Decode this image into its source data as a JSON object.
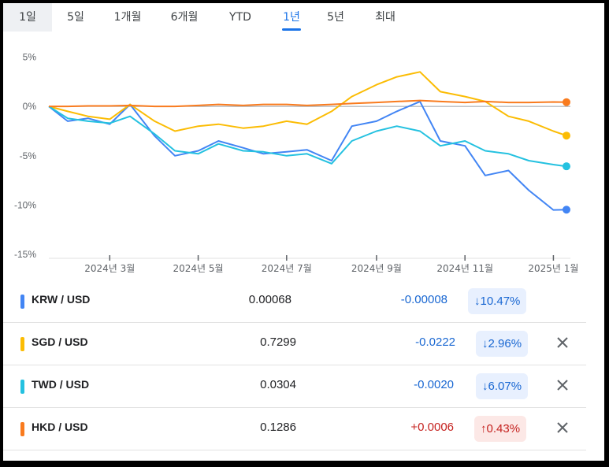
{
  "tabs": [
    {
      "label": "1일"
    },
    {
      "label": "5일"
    },
    {
      "label": "1개월"
    },
    {
      "label": "6개월"
    },
    {
      "label": "YTD"
    },
    {
      "label": "1년"
    },
    {
      "label": "5년"
    },
    {
      "label": "최대"
    }
  ],
  "active_tab": "1년",
  "chart_data": {
    "type": "line",
    "y_unit": "%",
    "ylim": [
      -15,
      6
    ],
    "y_ticks": [
      "5%",
      "0%",
      "-5%",
      "-10%",
      "-15%"
    ],
    "x_ticks": [
      "2024년 3월",
      "2024년 5월",
      "2024년 7월",
      "2024년 9월",
      "2024년 11월",
      "2025년 1월"
    ],
    "x": [
      "2024-01-19",
      "2024-02-01",
      "2024-02-15",
      "2024-03-01",
      "2024-03-15",
      "2024-04-01",
      "2024-04-15",
      "2024-05-01",
      "2024-05-15",
      "2024-06-01",
      "2024-06-15",
      "2024-07-01",
      "2024-07-15",
      "2024-08-01",
      "2024-08-15",
      "2024-09-01",
      "2024-09-15",
      "2024-10-01",
      "2024-10-15",
      "2024-11-01",
      "2024-11-15",
      "2024-12-01",
      "2024-12-15",
      "2025-01-01",
      "2025-01-10"
    ],
    "series": [
      {
        "name": "KRW / USD",
        "color": "#4285f4",
        "values": [
          0,
          -1.5,
          -1.2,
          -1.8,
          0.2,
          -3.0,
          -5.0,
          -4.5,
          -3.5,
          -4.2,
          -4.8,
          -4.6,
          -4.4,
          -5.5,
          -2.0,
          -1.5,
          -0.5,
          0.5,
          -3.5,
          -4.0,
          -7.0,
          -6.5,
          -8.5,
          -10.5,
          -10.47
        ]
      },
      {
        "name": "SGD / USD",
        "color": "#fbbc04",
        "values": [
          0,
          -0.5,
          -1.0,
          -1.3,
          0.2,
          -1.5,
          -2.5,
          -2.0,
          -1.8,
          -2.2,
          -2.0,
          -1.5,
          -1.8,
          -0.5,
          1.0,
          2.2,
          3.0,
          3.5,
          1.5,
          1.0,
          0.5,
          -1.0,
          -1.5,
          -2.5,
          -2.96
        ]
      },
      {
        "name": "TWD / USD",
        "color": "#24c1e0",
        "values": [
          0,
          -1.2,
          -1.5,
          -1.7,
          -1.0,
          -2.8,
          -4.5,
          -4.8,
          -3.8,
          -4.5,
          -4.6,
          -5.0,
          -4.8,
          -5.8,
          -3.5,
          -2.5,
          -2.0,
          -2.5,
          -4.0,
          -3.5,
          -4.5,
          -4.8,
          -5.5,
          -5.9,
          -6.07
        ]
      },
      {
        "name": "HKD / USD",
        "color": "#f97b1e",
        "values": [
          0,
          0,
          0.05,
          0.05,
          0.1,
          0,
          0,
          0.1,
          0.2,
          0.1,
          0.2,
          0.2,
          0.1,
          0.2,
          0.3,
          0.4,
          0.5,
          0.6,
          0.5,
          0.4,
          0.5,
          0.4,
          0.4,
          0.45,
          0.43
        ]
      }
    ]
  },
  "rows": [
    {
      "pair": "KRW / USD",
      "color": "#4285f4",
      "rate": "0.00068",
      "change": "-0.00008",
      "pct": "↓10.47%",
      "dir": "neg",
      "removable": false
    },
    {
      "pair": "SGD / USD",
      "color": "#fbbc04",
      "rate": "0.7299",
      "change": "-0.0222",
      "pct": "↓2.96%",
      "dir": "neg",
      "removable": true
    },
    {
      "pair": "TWD / USD",
      "color": "#24c1e0",
      "rate": "0.0304",
      "change": "-0.0020",
      "pct": "↓6.07%",
      "dir": "neg",
      "removable": true
    },
    {
      "pair": "HKD / USD",
      "color": "#f97b1e",
      "rate": "0.1286",
      "change": "+0.0006",
      "pct": "↑0.43%",
      "dir": "pos",
      "removable": true
    }
  ],
  "icons": {
    "remove": "close-icon"
  }
}
